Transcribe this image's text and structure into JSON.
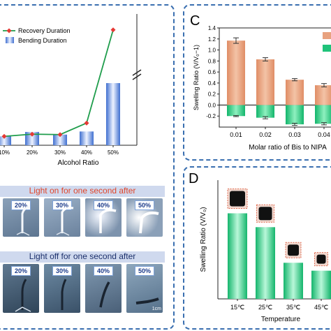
{
  "panel_c": {
    "letter": "C",
    "chart_data": {
      "type": "bar",
      "categories": [
        "0.01",
        "0.02",
        "0.03",
        "0.04"
      ],
      "series": [
        {
          "values": [
            1.17,
            0.83,
            0.46,
            0.36
          ],
          "errors": [
            0.05,
            0.03,
            0.02,
            0.03
          ],
          "color": "#e8a27f"
        },
        {
          "values": [
            -0.2,
            -0.23,
            -0.35,
            -0.34
          ],
          "errors": [
            0.01,
            0.02,
            0.02,
            0.02
          ],
          "color": "#1fc37a"
        }
      ],
      "xlabel": "Molar ratio of Bis to NIPA",
      "ylabel": "Swelling Ratio (V/V₀−1)",
      "ylim": [
        -0.4,
        1.4
      ],
      "yticks": [
        "-0.2",
        "0.0",
        "0.2",
        "0.4",
        "0.6",
        "0.8",
        "1.0",
        "1.2",
        "1.4"
      ]
    }
  },
  "panel_d": {
    "letter": "D",
    "chart_data": {
      "type": "bar",
      "categories": [
        "15℃",
        "25℃",
        "35℃",
        "45℃"
      ],
      "values": [
        1.73,
        1.45,
        0.73,
        0.57
      ],
      "xlabel": "Temperature",
      "ylabel": "Swelling Ratio (V/V₀)",
      "ylim": [
        0,
        2.4
      ],
      "bar_color": "#20c27a"
    }
  },
  "panel_b": {
    "chart_data": {
      "type": "bar",
      "categories": [
        "10%",
        "20%",
        "30%",
        "40%",
        "50%"
      ],
      "series": [
        {
          "name": "Recovery Duration",
          "type": "line",
          "values": [
            0.4,
            0.5,
            0.48,
            1.0,
            5.2
          ],
          "color": "#e53935"
        },
        {
          "name": "Bending Duration",
          "type": "bar",
          "values": [
            0.4,
            0.6,
            0.48,
            0.62,
            2.8
          ],
          "color": "#4a7fd6"
        }
      ],
      "xlabel": "Alcohol Ratio",
      "legend": "top-left"
    },
    "photos": {
      "light_on_label": "Light on for one second after",
      "light_off_label": "Light off for one second after",
      "labels": [
        "20%",
        "30%",
        "40%",
        "50%"
      ],
      "scale": "1cm"
    }
  }
}
